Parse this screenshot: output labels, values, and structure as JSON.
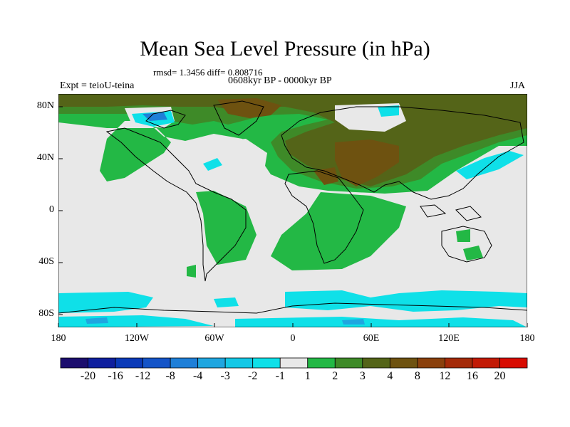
{
  "title": "Mean Sea Level Pressure (in hPa)",
  "stats": "rmsd= 1.3456 diff= 0.808716",
  "subtitle": "0608kyr BP - 0000kyr BP",
  "left_label": "Expt = teioU-teina",
  "season": "JJA",
  "lat_labels": [
    "80N",
    "40N",
    "0",
    "40S",
    "80S"
  ],
  "lon_labels": [
    "180",
    "120W",
    "60W",
    "0",
    "60E",
    "120E",
    "180"
  ],
  "colorbar": {
    "labels": [
      "-20",
      "-16",
      "-12",
      "-8",
      "-4",
      "-3",
      "-2",
      "-1",
      "1",
      "2",
      "3",
      "4",
      "8",
      "12",
      "16",
      "20"
    ],
    "colors": [
      "#1c0e6e",
      "#0f1f9e",
      "#0a3ab8",
      "#1454c8",
      "#1e7fd8",
      "#1fa6e0",
      "#14c8e6",
      "#0fe0e8",
      "#e8e8e8",
      "#23b845",
      "#3e8a28",
      "#546418",
      "#6e5210",
      "#8a400c",
      "#a42a08",
      "#c21a05",
      "#d80c02"
    ]
  },
  "map_colors": {
    "neutral": "#e8e8e8",
    "green_light": "#23b845",
    "green_dark": "#3e8a28",
    "olive": "#546418",
    "brown": "#6e5210",
    "cyan": "#0fe0e8",
    "light_blue": "#1fa6e0",
    "blue": "#1e7fd8"
  }
}
